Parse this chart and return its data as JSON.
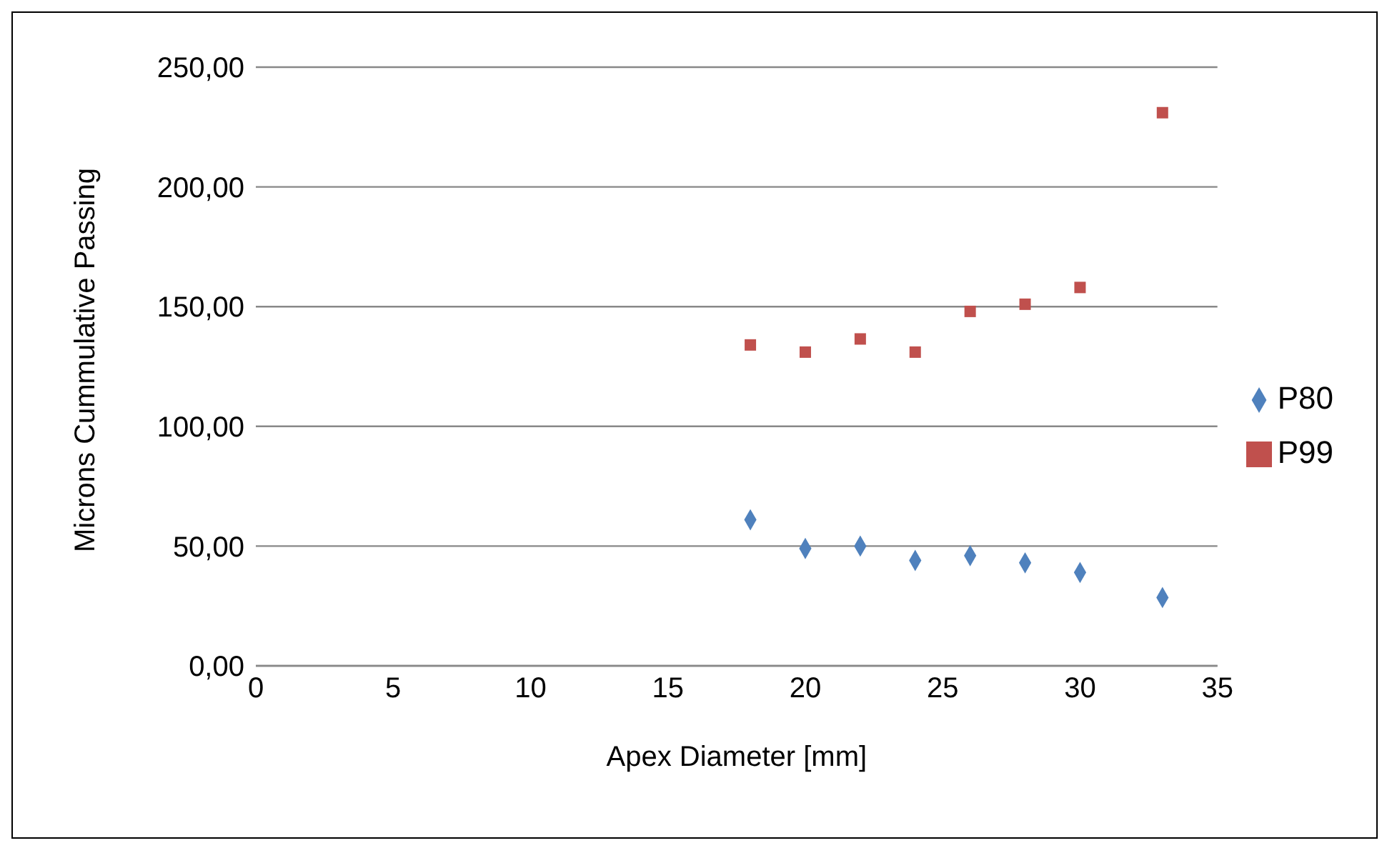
{
  "chart_data": {
    "type": "scatter",
    "xlabel": "Apex Diameter [mm]",
    "ylabel": "Microns Cummulative Passing",
    "x": [
      18,
      20,
      22,
      24,
      26,
      28,
      30,
      33
    ],
    "series": [
      {
        "name": "P80",
        "color": "#4f81bd",
        "marker": "diamond",
        "values": [
          61,
          49,
          50,
          44,
          46,
          43,
          39,
          28.5
        ]
      },
      {
        "name": "P99",
        "color": "#c0504d",
        "marker": "square",
        "values": [
          134,
          131,
          136.5,
          131,
          148,
          151,
          158,
          231
        ]
      }
    ],
    "xlim": [
      0,
      35
    ],
    "xticks": [
      0,
      5,
      10,
      15,
      20,
      25,
      30,
      35
    ],
    "ylim": [
      0,
      250
    ],
    "yticks": [
      {
        "value": 0,
        "label": "0,00"
      },
      {
        "value": 50,
        "label": "50,00"
      },
      {
        "value": 100,
        "label": "100,00"
      },
      {
        "value": 150,
        "label": "150,00"
      },
      {
        "value": 200,
        "label": "200,00"
      },
      {
        "value": 250,
        "label": "250,00"
      }
    ],
    "grid": "y",
    "legend": "right"
  }
}
